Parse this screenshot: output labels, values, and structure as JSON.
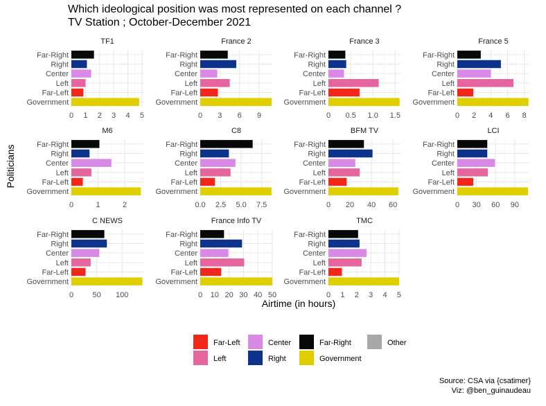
{
  "chart_data": {
    "type": "bar",
    "orientation": "horizontal",
    "title_line1": "Which ideological position was most represented on each channel ?",
    "title_line2": "TV Station ; October-December 2021",
    "xlabel": "Airtime (in hours)",
    "ylabel": "Politicians",
    "categories": [
      "Far-Right",
      "Right",
      "Center",
      "Left",
      "Far-Left",
      "Government"
    ],
    "colors": {
      "Far-Left": "#f2271c",
      "Left": "#e5669f",
      "Center": "#d98ae6",
      "Right": "#0d338c",
      "Far-Right": "#080808",
      "Government": "#e0cf00",
      "Other": "#a8a8a8"
    },
    "legend": {
      "position": "bottom",
      "rows": [
        [
          "Far-Left",
          "Center",
          "Far-Right",
          "Other"
        ],
        [
          "Left",
          "Right",
          "Government"
        ]
      ]
    },
    "grid": true,
    "panels": [
      {
        "name": "TF1",
        "xlim": [
          0,
          5.1
        ],
        "ticks": [
          0,
          1,
          2,
          3,
          4,
          5
        ],
        "values": {
          "Far-Right": 1.6,
          "Right": 1.1,
          "Center": 1.4,
          "Left": 1.0,
          "Far-Left": 0.85,
          "Government": 4.8
        }
      },
      {
        "name": "France 2",
        "xlim": [
          0,
          11
        ],
        "ticks": [
          0,
          3,
          6,
          9
        ],
        "values": {
          "Far-Right": 4.2,
          "Right": 5.5,
          "Center": 2.6,
          "Left": 4.5,
          "Far-Left": 2.7,
          "Government": 10.9
        }
      },
      {
        "name": "France 3",
        "xlim": [
          0,
          1.62
        ],
        "ticks": [
          0,
          0.5,
          1.0,
          1.5
        ],
        "ticklabels": [
          "0",
          "0.5",
          "1.0",
          "1.5"
        ],
        "values": {
          "Far-Right": 0.38,
          "Right": 0.4,
          "Center": 0.35,
          "Left": 1.13,
          "Far-Left": 0.7,
          "Government": 1.6
        }
      },
      {
        "name": "France 5",
        "xlim": [
          0,
          8.6
        ],
        "ticks": [
          0,
          2,
          4,
          6,
          8
        ],
        "values": {
          "Far-Right": 2.8,
          "Right": 5.2,
          "Center": 4.0,
          "Left": 6.7,
          "Far-Left": 1.9,
          "Government": 8.5
        }
      },
      {
        "name": "M6",
        "xlim": [
          0,
          2.7
        ],
        "ticks": [
          0,
          1,
          2
        ],
        "values": {
          "Far-Right": 1.05,
          "Right": 0.68,
          "Center": 1.5,
          "Left": 0.75,
          "Far-Left": 0.43,
          "Government": 2.6
        }
      },
      {
        "name": "C8",
        "xlim": [
          0,
          8.8
        ],
        "ticks": [
          0,
          2.5,
          5,
          7.5
        ],
        "ticklabels": [
          "0.0",
          "2.5",
          "5.0",
          "7.5"
        ],
        "values": {
          "Far-Right": 6.4,
          "Right": 3.5,
          "Center": 4.3,
          "Left": 3.7,
          "Far-Left": 1.8,
          "Government": 8.7
        }
      },
      {
        "name": "BFM TV",
        "xlim": [
          0,
          67
        ],
        "ticks": [
          0,
          20,
          40,
          60
        ],
        "values": {
          "Far-Right": 33,
          "Right": 41,
          "Center": 25,
          "Left": 29,
          "Far-Left": 17,
          "Government": 65
        }
      },
      {
        "name": "LCI",
        "xlim": [
          0,
          113
        ],
        "ticks": [
          0,
          30,
          60,
          90
        ],
        "values": {
          "Far-Right": 47,
          "Right": 47,
          "Center": 59,
          "Left": 48,
          "Far-Left": 25,
          "Government": 111
        }
      },
      {
        "name": "C NEWS",
        "xlim": [
          0,
          142
        ],
        "ticks": [
          0,
          50,
          100
        ],
        "values": {
          "Far-Right": 65,
          "Right": 70,
          "Center": 55,
          "Left": 38,
          "Far-Left": 28,
          "Government": 140
        }
      },
      {
        "name": "France Info TV",
        "xlim": [
          0,
          50
        ],
        "ticks": [
          0,
          10,
          20,
          30,
          40,
          50
        ],
        "values": {
          "Far-Right": 16.5,
          "Right": 29,
          "Center": 19.5,
          "Left": 30.5,
          "Far-Left": 14.5,
          "Government": 50
        }
      },
      {
        "name": "TMC",
        "xlim": [
          0,
          5.1
        ],
        "ticks": [
          0,
          1,
          2,
          3,
          4,
          5
        ],
        "values": {
          "Far-Right": 2.1,
          "Right": 2.2,
          "Center": 2.7,
          "Left": 2.35,
          "Far-Left": 0.95,
          "Government": 5.0
        }
      }
    ],
    "caption_line1": "Source: CSA via {csatimer}",
    "caption_line2": "Viz: @ben_guinaudeau"
  }
}
